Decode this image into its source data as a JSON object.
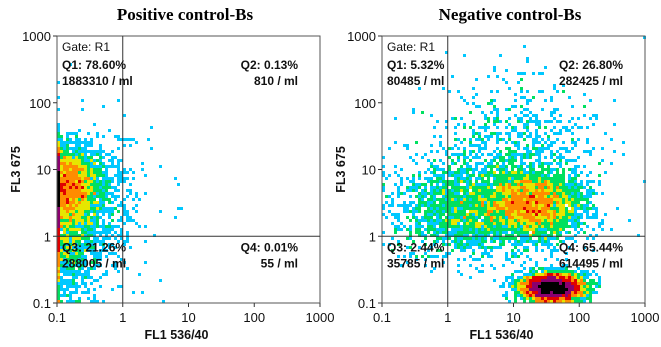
{
  "chart_data": [
    {
      "type": "scatter",
      "title": "Positive control-Bs",
      "xlabel": "FL1  536/40",
      "ylabel": "FL3  675",
      "xscale": "log",
      "yscale": "log",
      "xlim": [
        0.1,
        1000
      ],
      "ylim": [
        0.1,
        1000
      ],
      "xticks": [
        "0.1",
        "1",
        "10",
        "100",
        "1000"
      ],
      "yticks": [
        "0.1",
        "1",
        "10",
        "100",
        "1000"
      ],
      "gate_label": "Gate: R1",
      "quadrant_divider": {
        "x": 1,
        "y": 1
      },
      "quadrants": [
        {
          "id": "Q1",
          "label": "Q1: 78.60%",
          "count": "1883310 / ml",
          "position": "top-left"
        },
        {
          "id": "Q2",
          "label": "Q2: 0.13%",
          "count": "810 / ml",
          "position": "top-right"
        },
        {
          "id": "Q3",
          "label": "Q3: 21.26%",
          "count": "288005 / ml",
          "position": "bottom-left"
        },
        {
          "id": "Q4",
          "label": "Q4: 0.01%",
          "count": "55 / ml",
          "position": "bottom-right"
        }
      ],
      "populations": [
        {
          "cx": 0.13,
          "cy": 5.5,
          "sx": 0.55,
          "sy": 0.55,
          "n": 4200
        },
        {
          "cx": 0.13,
          "cy": 1.0,
          "sx": 0.5,
          "sy": 0.9,
          "n": 1400
        },
        {
          "cx": 0.25,
          "cy": 3.0,
          "sx": 0.9,
          "sy": 1.1,
          "n": 900
        }
      ]
    },
    {
      "type": "scatter",
      "title": "Negative control-Bs",
      "xlabel": "FL1  536/40",
      "ylabel": "FL3  675",
      "xscale": "log",
      "yscale": "log",
      "xlim": [
        0.1,
        1000
      ],
      "ylim": [
        0.1,
        1000
      ],
      "xticks": [
        "0.1",
        "1",
        "10",
        "100",
        "1000"
      ],
      "yticks": [
        "0.1",
        "1",
        "10",
        "100",
        "1000"
      ],
      "gate_label": "Gate: R1",
      "quadrant_divider": {
        "x": 1,
        "y": 1
      },
      "quadrants": [
        {
          "id": "Q1",
          "label": "Q1: 5.32%",
          "count": "80485 / ml",
          "position": "top-left"
        },
        {
          "id": "Q2",
          "label": "Q2: 26.80%",
          "count": "282425 / ml",
          "position": "top-right"
        },
        {
          "id": "Q3",
          "label": "Q3: 2.44%",
          "count": "35785 / ml",
          "position": "bottom-left"
        },
        {
          "id": "Q4",
          "label": "Q4: 65.44%",
          "count": "614495 / ml",
          "position": "bottom-right"
        }
      ],
      "populations": [
        {
          "cx": 40,
          "cy": 0.17,
          "sx": 0.45,
          "sy": 0.2,
          "n": 4800
        },
        {
          "cx": 20,
          "cy": 3.0,
          "sx": 0.75,
          "sy": 0.5,
          "n": 3000
        },
        {
          "cx": 2,
          "cy": 2.5,
          "sx": 1.1,
          "sy": 0.7,
          "n": 1800
        },
        {
          "cx": 10,
          "cy": 15,
          "sx": 1.3,
          "sy": 1.2,
          "n": 900
        }
      ]
    }
  ],
  "palette": [
    "#1e90ff",
    "#00c8ff",
    "#00e060",
    "#e6e600",
    "#ff8c00",
    "#e00000",
    "#8a0070",
    "#000000"
  ]
}
